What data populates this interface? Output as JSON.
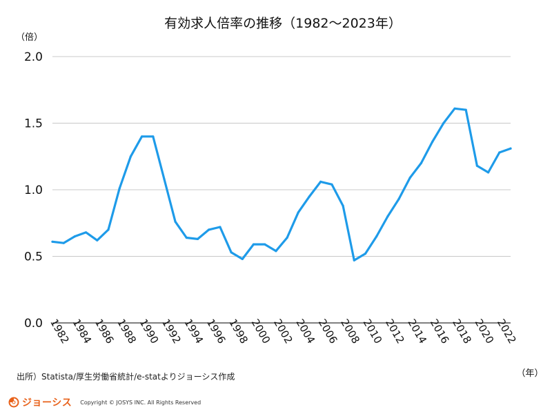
{
  "chart_data": {
    "type": "line",
    "title": "有効求人倍率の推移（1982〜2023年）",
    "ylabel": "（倍）",
    "xlabel": "（年）",
    "ylim": [
      0,
      2.0
    ],
    "yticks": [
      "0.0",
      "0.5",
      "1.0",
      "1.5",
      "2.0"
    ],
    "ytick_values": [
      0,
      0.5,
      1.0,
      1.5,
      2.0
    ],
    "xtick_labels": [
      "1982",
      "1984",
      "1986",
      "1988",
      "1990",
      "1992",
      "1994",
      "1996",
      "1998",
      "2000",
      "2002",
      "2004",
      "2006",
      "2008",
      "2010",
      "2012",
      "2014",
      "2016",
      "2018",
      "2020",
      "2022"
    ],
    "grid": true,
    "line_color": "#1e9be9",
    "series": [
      {
        "name": "有効求人倍率",
        "x": [
          1982,
          1983,
          1984,
          1985,
          1986,
          1987,
          1988,
          1989,
          1990,
          1991,
          1992,
          1993,
          1994,
          1995,
          1996,
          1997,
          1998,
          1999,
          2000,
          2001,
          2002,
          2003,
          2004,
          2005,
          2006,
          2007,
          2008,
          2009,
          2010,
          2011,
          2012,
          2013,
          2014,
          2015,
          2016,
          2017,
          2018,
          2019,
          2020,
          2021,
          2022,
          2023
        ],
        "values": [
          0.61,
          0.6,
          0.65,
          0.68,
          0.62,
          0.7,
          1.01,
          1.25,
          1.4,
          1.4,
          1.08,
          0.76,
          0.64,
          0.63,
          0.7,
          0.72,
          0.53,
          0.48,
          0.59,
          0.59,
          0.54,
          0.64,
          0.83,
          0.95,
          1.06,
          1.04,
          0.88,
          0.47,
          0.52,
          0.65,
          0.8,
          0.93,
          1.09,
          1.2,
          1.36,
          1.5,
          1.61,
          1.6,
          1.18,
          1.13,
          1.28,
          1.31
        ]
      }
    ]
  },
  "footer": {
    "source": "出所）Statista/厚生労働省統計/e-statよりジョーシス作成",
    "brand": "ジョーシス",
    "copyright": "Copyright © JOSYS INC. All Rights Reserved",
    "brand_color": "#e8611a"
  }
}
